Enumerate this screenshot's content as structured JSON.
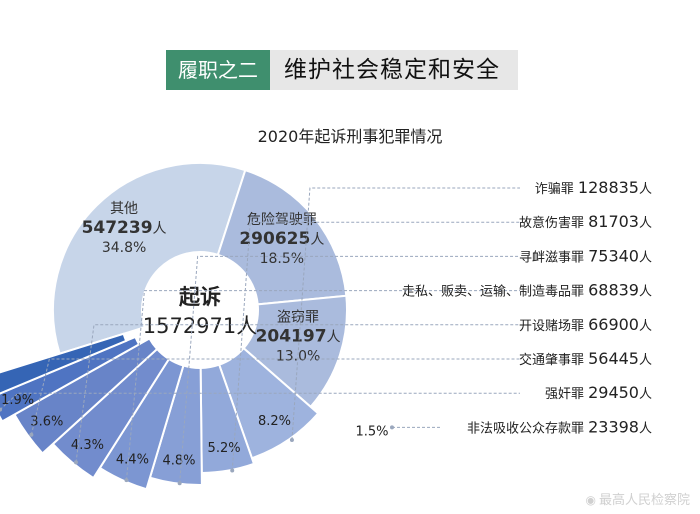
{
  "header": {
    "tag": "履职之二",
    "title": "维护社会稳定和安全"
  },
  "chart_data": {
    "type": "pie",
    "title": "2020年起诉刑事犯罪情况",
    "center": {
      "label": "起诉",
      "total": "1572971",
      "unit": "人"
    },
    "unit": "人",
    "slices": [
      {
        "name": "其他",
        "value": 547239,
        "percent": "34.8%"
      },
      {
        "name": "危险驾驶罪",
        "value": 290625,
        "percent": "18.5%"
      },
      {
        "name": "盗窃罪",
        "value": 204197,
        "percent": "13.0%"
      },
      {
        "name": "诈骗罪",
        "value": 128835,
        "percent": "8.2%"
      },
      {
        "name": "故意伤害罪",
        "value": 81703,
        "percent": "5.2%"
      },
      {
        "name": "寻衅滋事罪",
        "value": 75340,
        "percent": "4.8%"
      },
      {
        "name": "走私、贩卖、运输、制造毒品罪",
        "value": 68839,
        "percent": "4.4%"
      },
      {
        "name": "开设赌场罪",
        "value": 66900,
        "percent": "4.3%"
      },
      {
        "name": "交通肇事罪",
        "value": 56445,
        "percent": "3.6%"
      },
      {
        "name": "强奸罪",
        "value": 29450,
        "percent": "1.9%"
      },
      {
        "name": "非法吸收公众存款罪",
        "value": 23398,
        "percent": "1.5%"
      }
    ],
    "colors": {
      "large": "#c7d5e9",
      "mid": "#aabbdd",
      "small": [
        "#9eb3de",
        "#92a9da",
        "#879fd6",
        "#7c96d2",
        "#728ccd",
        "#6884c8",
        "#4f74c2",
        "#3565b5"
      ],
      "separator": "#ffffff",
      "leader": "#9aa7bd"
    }
  },
  "watermark": {
    "text": "最高人民检察院"
  }
}
